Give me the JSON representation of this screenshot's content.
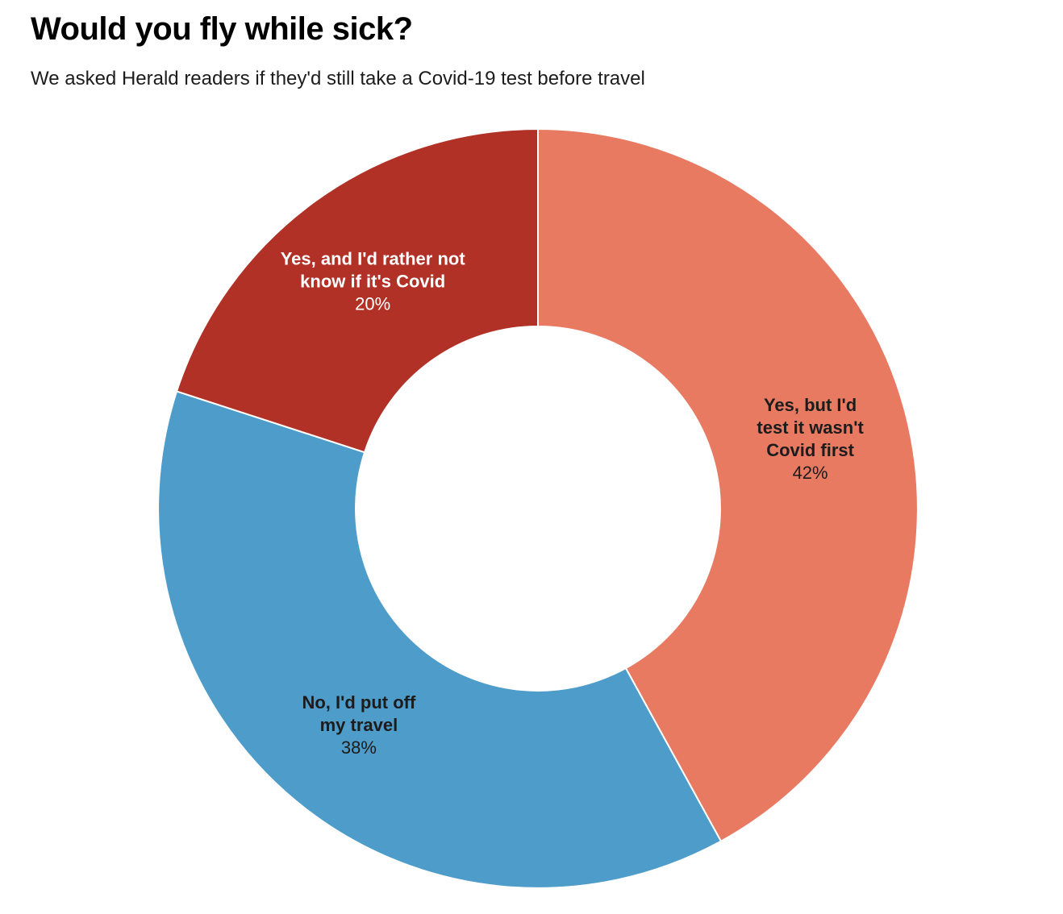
{
  "header": {
    "title": "Would you fly while sick?",
    "subtitle": "We asked Herald readers if they'd still take a Covid-19 test before travel"
  },
  "chart_data": {
    "type": "pie",
    "variant": "donut",
    "title": "Would you fly while sick?",
    "subtitle": "We asked Herald readers if they'd still take a Covid-19 test before travel",
    "unit": "%",
    "start_angle_deg": 0,
    "direction": "clockwise",
    "inner_radius_ratio": 0.48,
    "background_color": "#ffffff",
    "separator_color": "#ffffff",
    "legend_position": "none",
    "segments": [
      {
        "id": "yes-test-first",
        "label": "Yes, but I'd test it wasn't Covid first",
        "label_lines": [
          "Yes, but I'd",
          "test it wasn't",
          "Covid first"
        ],
        "value": 42,
        "pct_label": "42%",
        "color": "#E87A62",
        "text_color": "#1c1c1c"
      },
      {
        "id": "no-put-off-travel",
        "label": "No, I'd put off my travel",
        "label_lines": [
          "No, I'd put off",
          "my travel"
        ],
        "value": 38,
        "pct_label": "38%",
        "color": "#4D9CCA",
        "text_color": "#1c1c1c"
      },
      {
        "id": "yes-rather-not-know",
        "label": "Yes, and I'd rather not know if it's Covid",
        "label_lines": [
          "Yes, and I'd rather not",
          "know if it's Covid"
        ],
        "value": 20,
        "pct_label": "20%",
        "color": "#B13127",
        "text_color": "#ffffff"
      }
    ]
  }
}
